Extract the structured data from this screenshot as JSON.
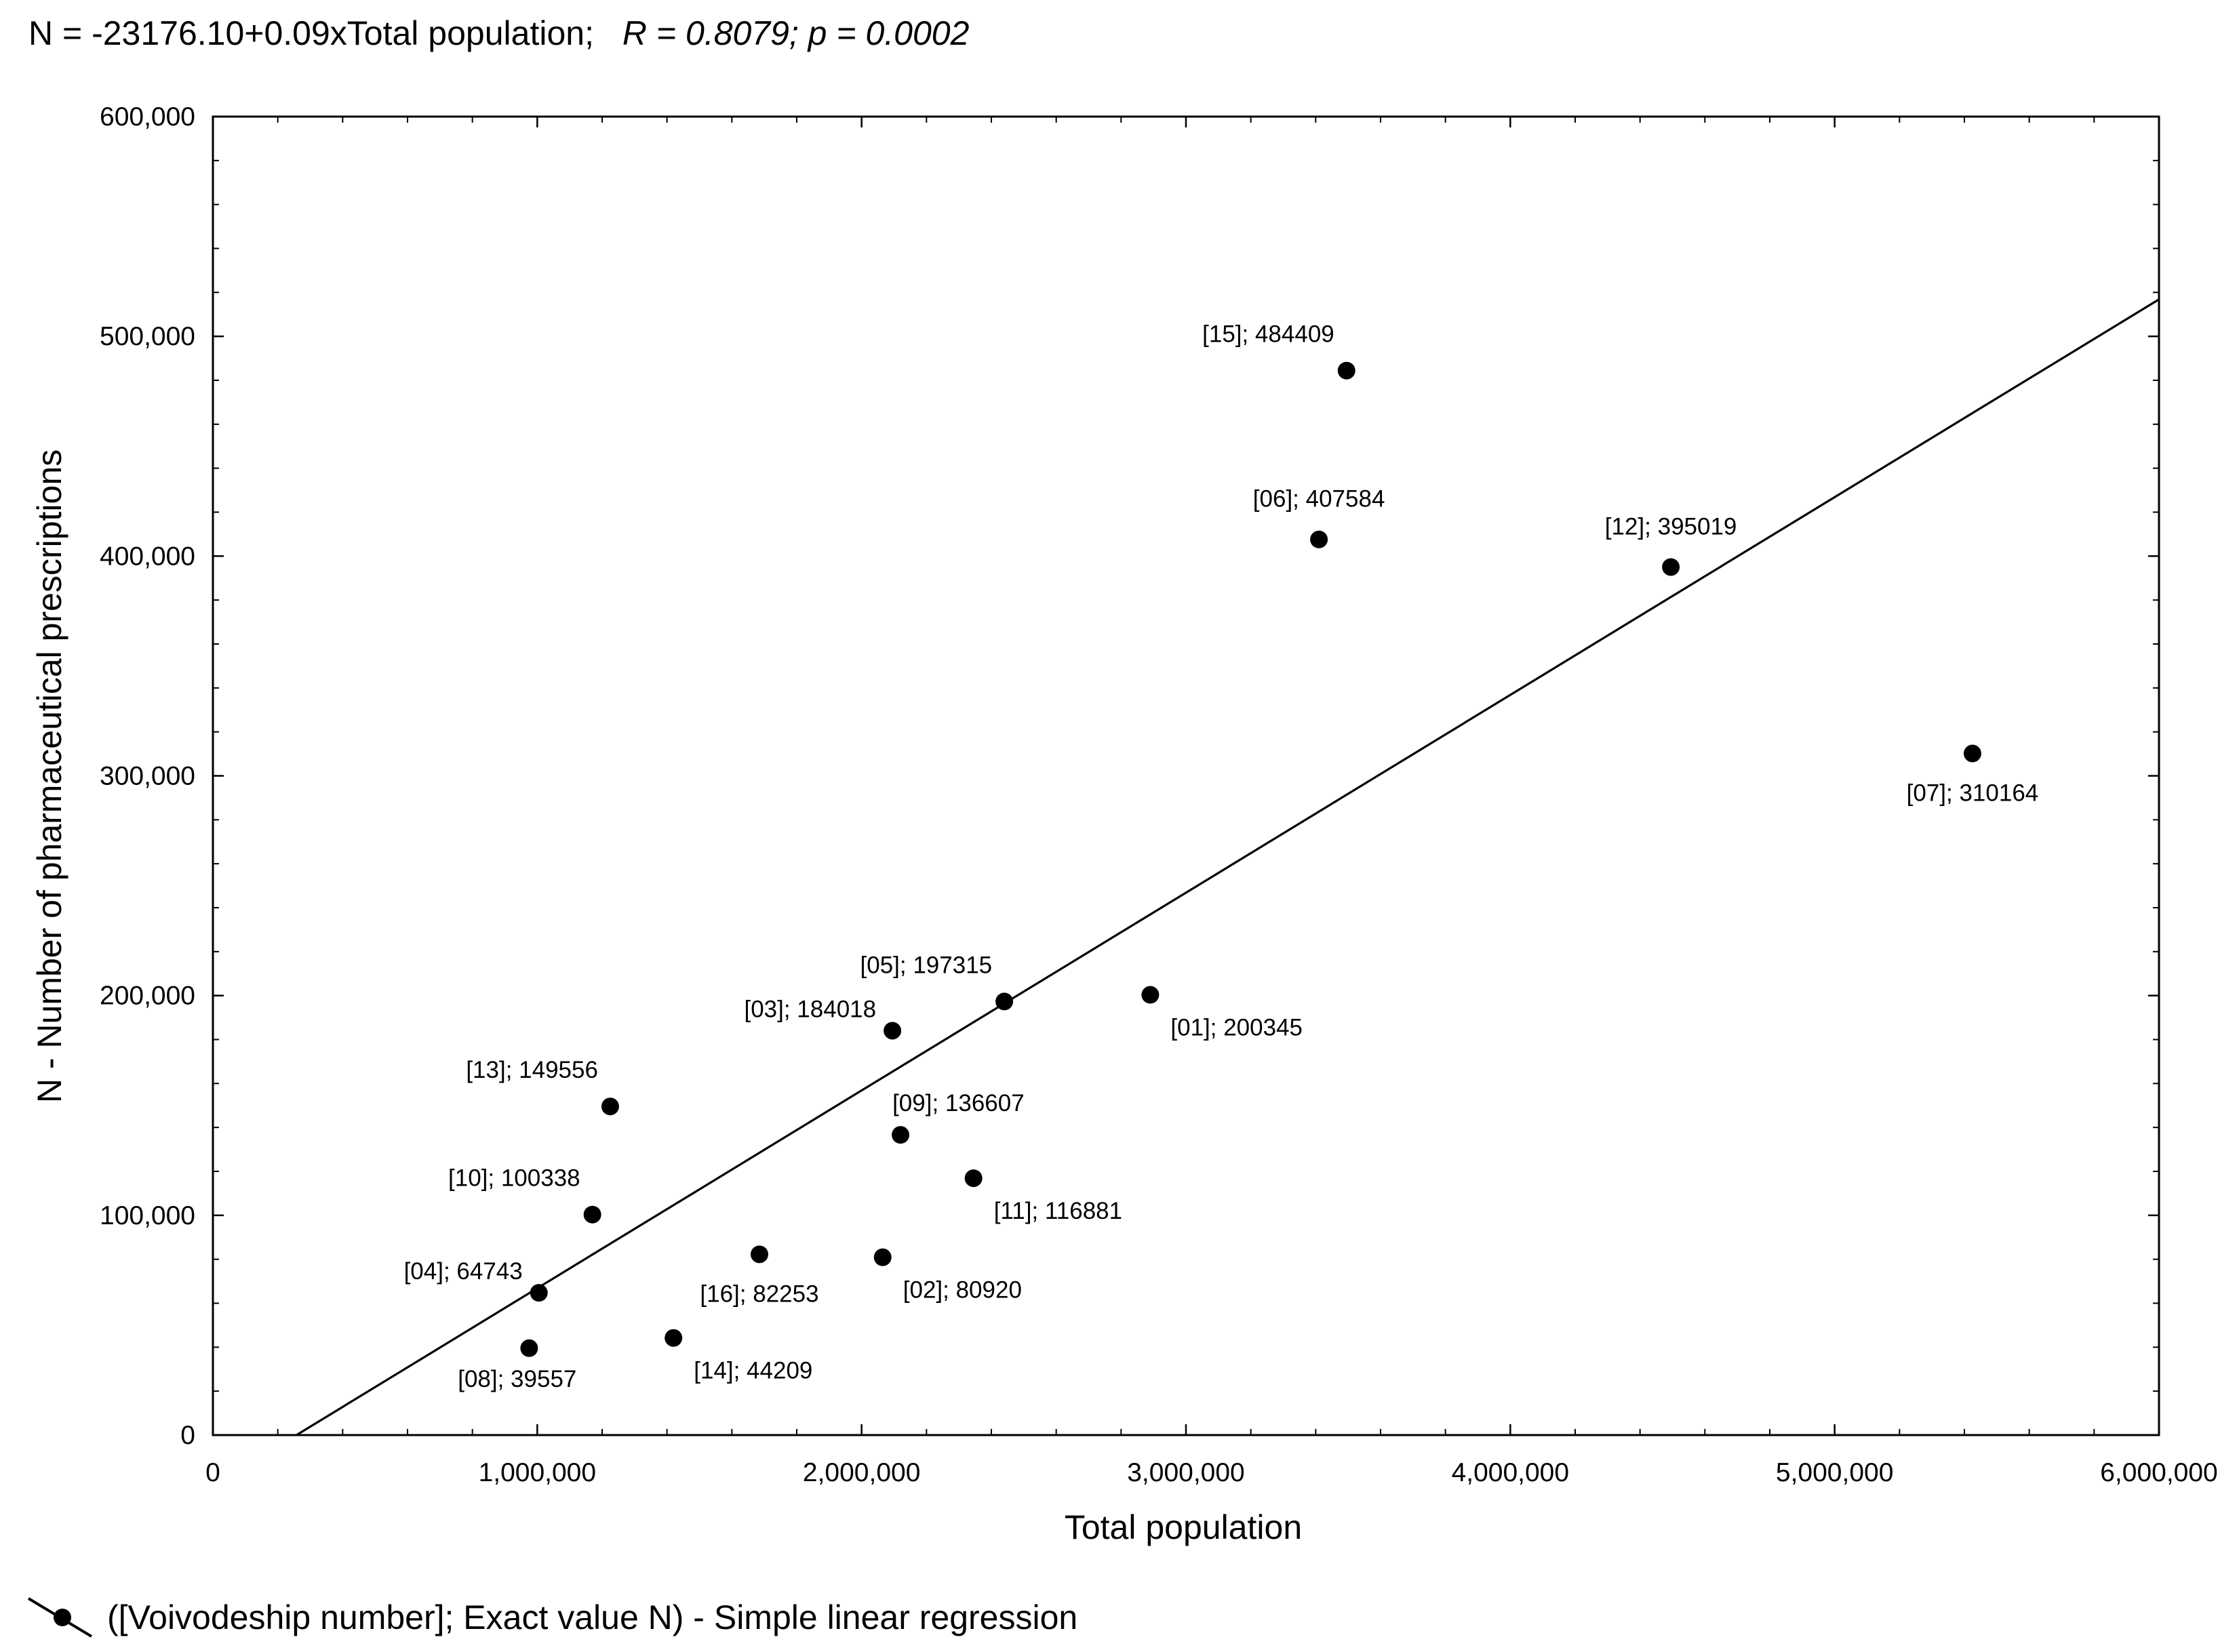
{
  "chart_data": {
    "type": "scatter",
    "title_prefix": "N = -23176.10+0.09xTotal population;",
    "title_stats": "R = 0.8079; p = 0.0002",
    "xlabel": "Total population",
    "ylabel": "N - Number of pharmaceutical prescriptions",
    "xlim": [
      0,
      6000000
    ],
    "ylim": [
      0,
      600000
    ],
    "x_ticks": [
      {
        "value": 0,
        "label": "0"
      },
      {
        "value": 1000000,
        "label": "1,000,000"
      },
      {
        "value": 2000000,
        "label": "2,000,000"
      },
      {
        "value": 3000000,
        "label": "3,000,000"
      },
      {
        "value": 4000000,
        "label": "4,000,000"
      },
      {
        "value": 5000000,
        "label": "5,000,000"
      },
      {
        "value": 6000000,
        "label": "6,000,000"
      }
    ],
    "y_ticks": [
      {
        "value": 0,
        "label": "0"
      },
      {
        "value": 100000,
        "label": "100,000"
      },
      {
        "value": 200000,
        "label": "200,000"
      },
      {
        "value": 300000,
        "label": "300,000"
      },
      {
        "value": 400000,
        "label": "400,000"
      },
      {
        "value": 500000,
        "label": "500,000"
      },
      {
        "value": 600000,
        "label": "600,000"
      }
    ],
    "regression": {
      "intercept": -23176.1,
      "slope": 0.09
    },
    "points": [
      {
        "id": "01",
        "x": 2890000,
        "y": 200345,
        "label": "[01]; 200345",
        "pos": "below-right"
      },
      {
        "id": "02",
        "x": 2065000,
        "y": 80920,
        "label": "[02]; 80920",
        "pos": "below-right"
      },
      {
        "id": "03",
        "x": 2095000,
        "y": 184018,
        "label": "[03]; 184018",
        "pos": "left"
      },
      {
        "id": "04",
        "x": 1005000,
        "y": 64743,
        "label": "[04]; 64743",
        "pos": "left"
      },
      {
        "id": "05",
        "x": 2440000,
        "y": 197315,
        "label": "[05]; 197315",
        "pos": "above-left"
      },
      {
        "id": "06",
        "x": 3410000,
        "y": 407584,
        "label": "[06]; 407584",
        "pos": "above"
      },
      {
        "id": "07",
        "x": 5425000,
        "y": 310164,
        "label": "[07]; 310164",
        "pos": "below"
      },
      {
        "id": "08",
        "x": 975000,
        "y": 39557,
        "label": "[08]; 39557",
        "pos": "below-left"
      },
      {
        "id": "09",
        "x": 2120000,
        "y": 136607,
        "label": "[09]; 136607",
        "pos": "above-right"
      },
      {
        "id": "10",
        "x": 1170000,
        "y": 100338,
        "label": "[10]; 100338",
        "pos": "above-left"
      },
      {
        "id": "11",
        "x": 2345000,
        "y": 116881,
        "label": "[11]; 116881",
        "pos": "below-right"
      },
      {
        "id": "12",
        "x": 4495000,
        "y": 395019,
        "label": "[12]; 395019",
        "pos": "above"
      },
      {
        "id": "13",
        "x": 1225000,
        "y": 149556,
        "label": "[13]; 149556",
        "pos": "above-left"
      },
      {
        "id": "14",
        "x": 1420000,
        "y": 44209,
        "label": "[14]; 44209",
        "pos": "below-right"
      },
      {
        "id": "15",
        "x": 3495000,
        "y": 484409,
        "label": "[15]; 484409",
        "pos": "above-left"
      },
      {
        "id": "16",
        "x": 1685000,
        "y": 82253,
        "label": "[16]; 82253",
        "pos": "below"
      }
    ],
    "legend_text": "([Voivodeship number]; Exact value N) - Simple linear regression",
    "legend_position": "bottom-left"
  }
}
